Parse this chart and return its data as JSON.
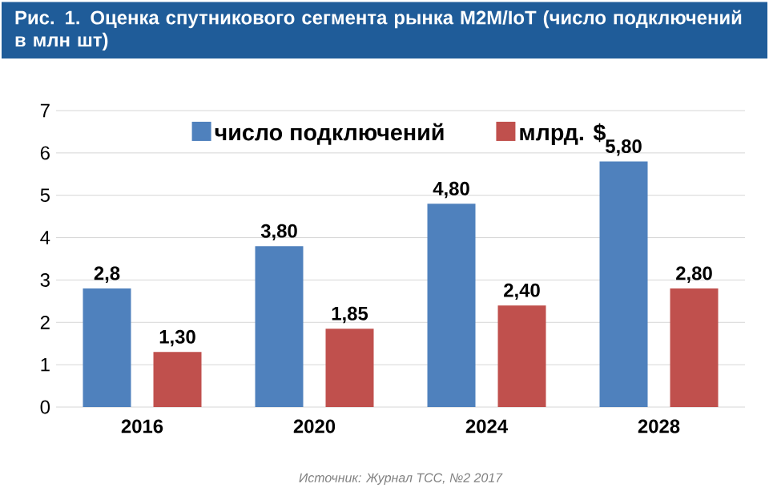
{
  "chart_data": {
    "type": "bar",
    "title": "Рис. 1. Оценка спутникового сегмента рынка M2M/IoT (число подключений в млн шт)",
    "categories": [
      "2016",
      "2020",
      "2024",
      "2028"
    ],
    "series": [
      {
        "name": "число подключений",
        "color": "#4f81bd",
        "values": [
          2.8,
          3.8,
          4.8,
          5.8
        ],
        "value_labels": [
          "2,8",
          "3,80",
          "4,80",
          "5,80"
        ]
      },
      {
        "name": "млрд. $",
        "color": "#c0504d",
        "values": [
          1.3,
          1.85,
          2.4,
          2.8
        ],
        "value_labels": [
          "1,30",
          "1,85",
          "2,40",
          "2,80"
        ]
      }
    ],
    "ylim": [
      0,
      7
    ],
    "yticks": [
      0,
      1,
      2,
      3,
      4,
      5,
      6,
      7
    ],
    "grid": "y",
    "legend": "top",
    "annotations": [
      "Источник: Журнал ТСС, №2 2017"
    ]
  }
}
